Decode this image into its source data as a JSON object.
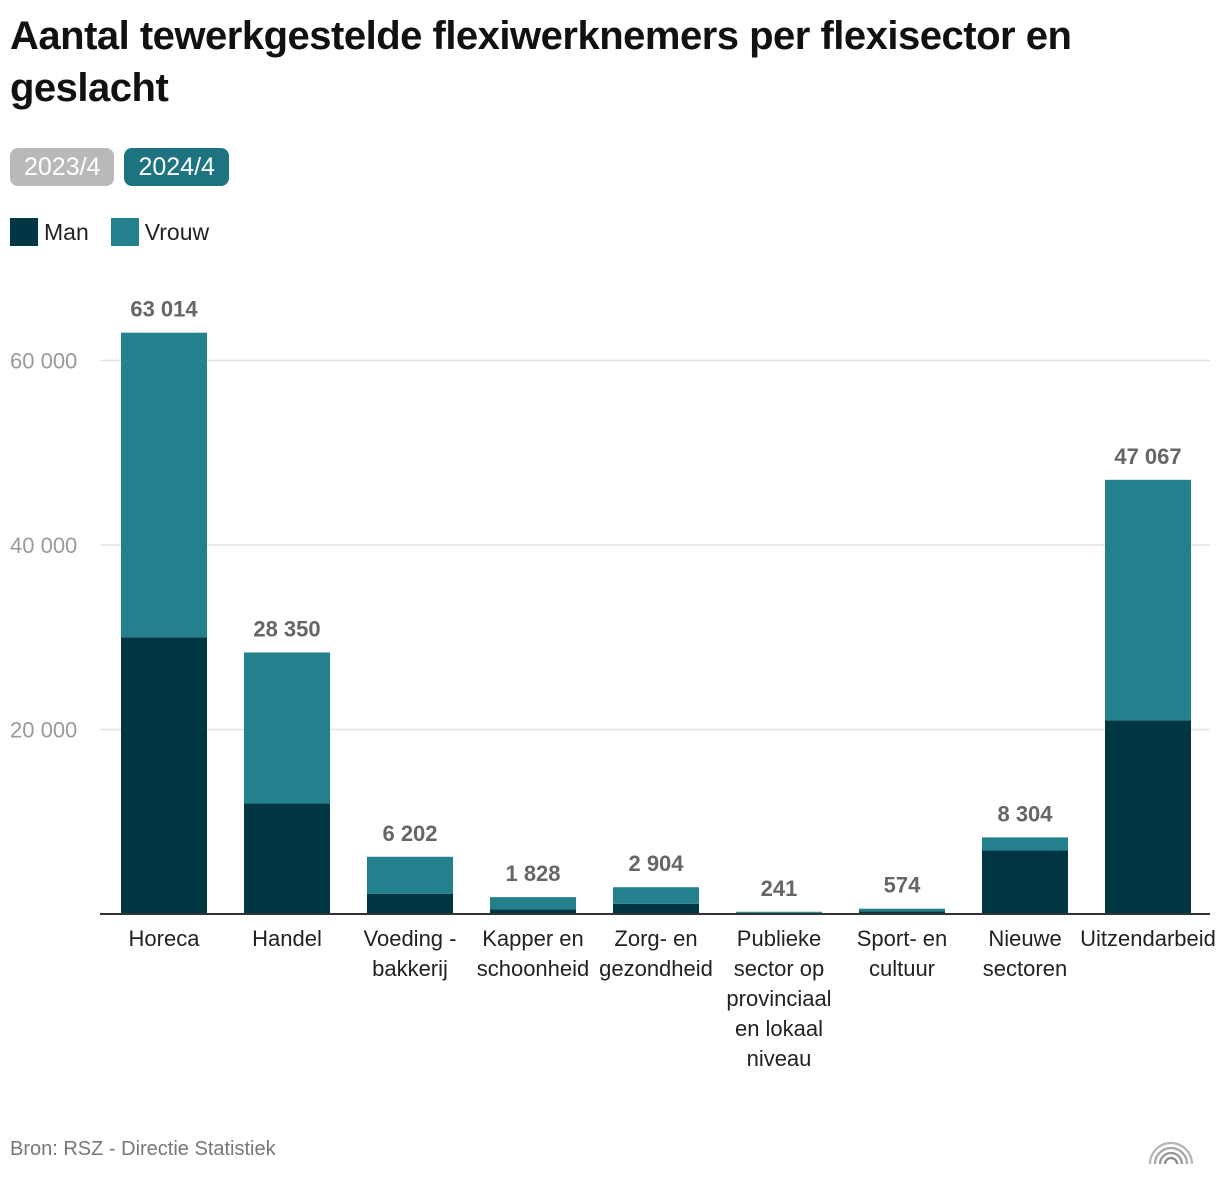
{
  "title": "Aantal tewerkgestelde flexiwerknemers per flexisector en geslacht",
  "tabs": [
    {
      "label": "2023/4",
      "active": false
    },
    {
      "label": "2024/4",
      "active": true
    }
  ],
  "colors": {
    "man": "#003641",
    "vrouw": "#23808d",
    "tab_active": "#1d7380",
    "tab_inactive": "#b9b9b9"
  },
  "source": "Bron: RSZ - Directie Statistiek",
  "logo_icon": "arcs-logo-icon",
  "chart_data": {
    "type": "bar",
    "stacked": true,
    "categories": [
      [
        "Horeca"
      ],
      [
        "Handel"
      ],
      [
        "Voeding -",
        "bakkerij"
      ],
      [
        "Kapper en",
        "schoonheid"
      ],
      [
        "Zorg- en",
        "gezondheid"
      ],
      [
        "Publieke",
        "sector op",
        "provinciaal",
        "en lokaal",
        "niveau"
      ],
      [
        "Sport- en",
        "cultuur"
      ],
      [
        "Nieuwe",
        "sectoren"
      ],
      [
        "Uitzendarbeid"
      ]
    ],
    "series": [
      {
        "name": "Man",
        "values": [
          30000,
          12000,
          2200,
          500,
          1100,
          120,
          280,
          6900,
          21000
        ]
      },
      {
        "name": "Vrouw",
        "values": [
          33014,
          16350,
          4002,
          1328,
          1804,
          121,
          294,
          1404,
          26067
        ]
      }
    ],
    "totals": [
      63014,
      28350,
      6202,
      1828,
      2904,
      241,
      574,
      8304,
      47067
    ],
    "total_labels": [
      "63 014",
      "28 350",
      "6 202",
      "1 828",
      "2 904",
      "241",
      "574",
      "8 304",
      "47 067"
    ],
    "y_ticks": [
      20000,
      40000,
      60000
    ],
    "y_tick_labels": [
      "20 000",
      "40 000",
      "60 000"
    ],
    "ylim": [
      0,
      60000
    ],
    "grid": true,
    "legend_position": "top-left"
  }
}
